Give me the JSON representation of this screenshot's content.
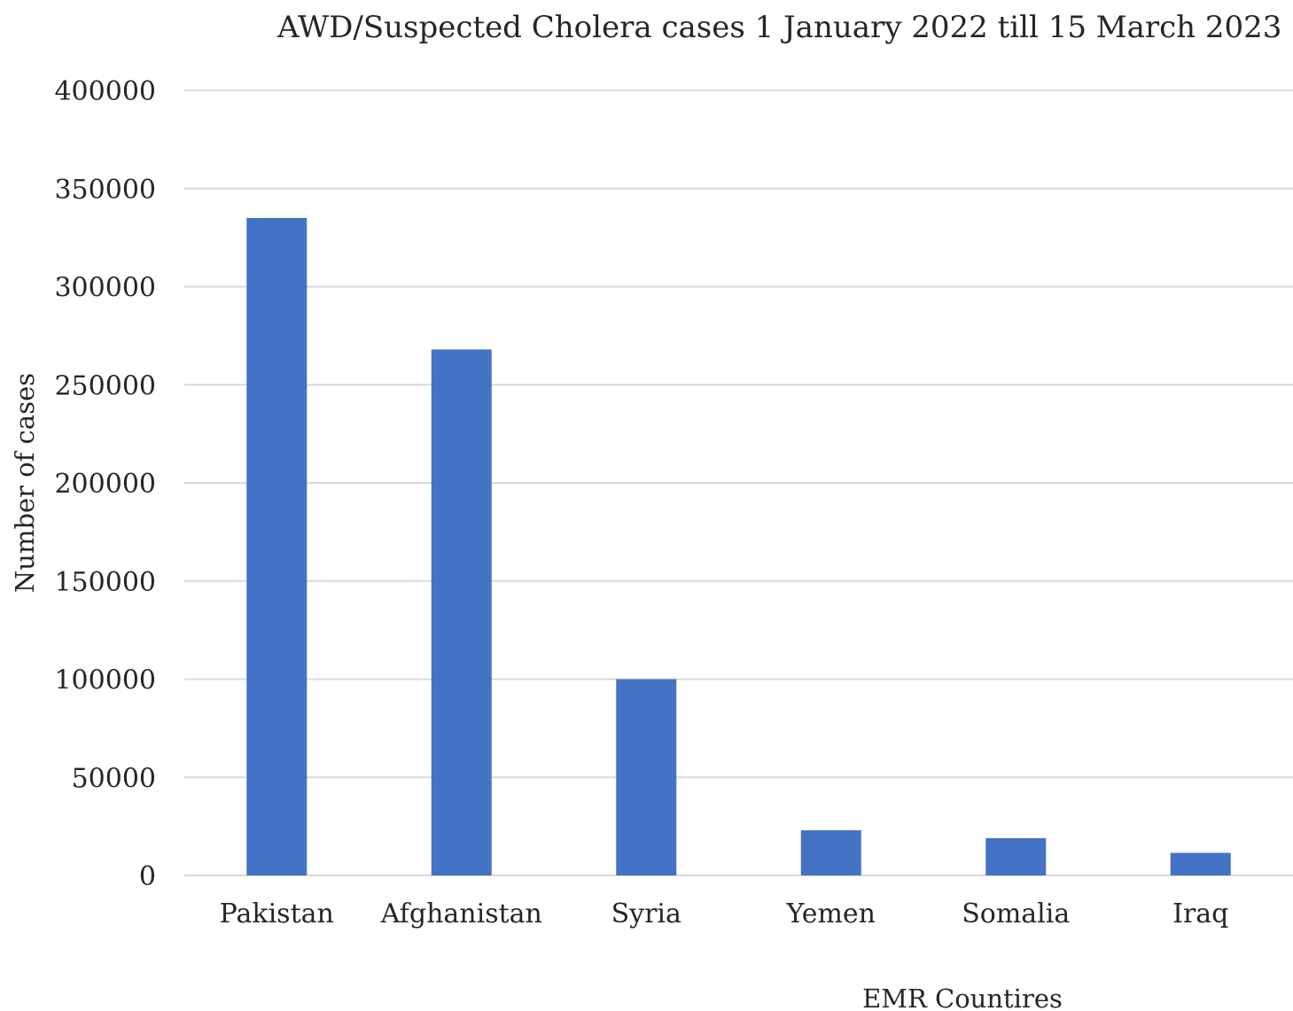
{
  "chart_data": {
    "type": "bar",
    "title": "AWD/Suspected Cholera cases 1 January 2022 till 15 March  2023",
    "xlabel": "EMR Countires",
    "ylabel": "Number of cases",
    "categories": [
      "Pakistan",
      "Afghanistan",
      "Syria",
      "Yemen",
      "Somalia",
      "Iraq"
    ],
    "values": [
      335000,
      268000,
      100000,
      23000,
      19000,
      11500
    ],
    "ylim": [
      0,
      400000
    ],
    "yticks": [
      0,
      50000,
      100000,
      150000,
      200000,
      250000,
      300000,
      350000,
      400000
    ],
    "grid": true,
    "legend": "none",
    "bar_color": "#4472c4",
    "grid_color": "#d9d9d9"
  }
}
